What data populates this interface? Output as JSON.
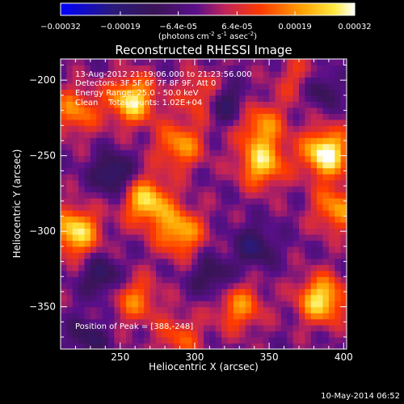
{
  "chart_data": {
    "type": "heatmap",
    "title": "Reconstructed RHESSI Image",
    "xlabel": "Heliocentric X (arcsec)",
    "ylabel": "Heliocentric Y (arcsec)",
    "xlim": [
      210,
      402
    ],
    "ylim": [
      -378,
      -186
    ],
    "x_ticks": [
      250,
      300,
      350,
      400
    ],
    "y_ticks": [
      -200,
      -250,
      -300,
      -350
    ],
    "colorbar": {
      "range": [
        -0.00032,
        0.00032
      ],
      "tick_labels": [
        "-0.00032",
        "-0.00019",
        "-6.4e-05",
        "6.4e-05",
        "0.00019",
        "0.00032"
      ],
      "units_label": "(photons cm",
      "units_sup1": "-2",
      "units_mid": " s",
      "units_sup2": "-1",
      "units_end": " asec",
      "units_sup3": "-2",
      "units_close": ")"
    },
    "annotations": [
      "13-Aug-2012 21:19:06.000 to 21:23:56.000",
      "Detectors: 3F 5F 6F 7F 8F 9F, Att 0",
      "Energy Range: 25.0 - 50.0 keV",
      "Clean    Total counts: 1.02E+04"
    ],
    "peak_label": "Position of Peak = [388,-248]",
    "peak": [
      388,
      -248
    ],
    "sources": [
      {
        "x": 388,
        "y": -248,
        "amp": 1.0
      },
      {
        "x": 258,
        "y": -213,
        "amp": 0.85
      },
      {
        "x": 268,
        "y": -280,
        "amp": 0.8
      },
      {
        "x": 220,
        "y": -300,
        "amp": 0.85
      },
      {
        "x": 290,
        "y": -243,
        "amp": 0.6
      },
      {
        "x": 345,
        "y": -255,
        "amp": 0.75
      },
      {
        "x": 345,
        "y": -230,
        "amp": 0.55
      },
      {
        "x": 290,
        "y": -300,
        "amp": 0.7
      },
      {
        "x": 305,
        "y": -210,
        "amp": 0.45
      },
      {
        "x": 385,
        "y": -345,
        "amp": 0.85
      },
      {
        "x": 395,
        "y": -285,
        "amp": 0.6
      },
      {
        "x": 330,
        "y": -350,
        "amp": 0.55
      },
      {
        "x": 260,
        "y": -345,
        "amp": 0.5
      },
      {
        "x": 290,
        "y": -370,
        "amp": 0.4
      },
      {
        "x": 220,
        "y": -220,
        "amp": 0.55
      },
      {
        "x": 372,
        "y": -200,
        "amp": 0.4
      }
    ],
    "minima": [
      {
        "x": 245,
        "y": -262,
        "amp": 0.55
      },
      {
        "x": 320,
        "y": -215,
        "amp": 0.5
      },
      {
        "x": 383,
        "y": -205,
        "amp": 0.5
      },
      {
        "x": 238,
        "y": -330,
        "amp": 0.45
      },
      {
        "x": 340,
        "y": -310,
        "amp": 0.45
      },
      {
        "x": 312,
        "y": -330,
        "amp": 0.4
      },
      {
        "x": 228,
        "y": -370,
        "amp": 0.35
      }
    ]
  },
  "footer": {
    "timestamp": "10-May-2014 06:52"
  }
}
